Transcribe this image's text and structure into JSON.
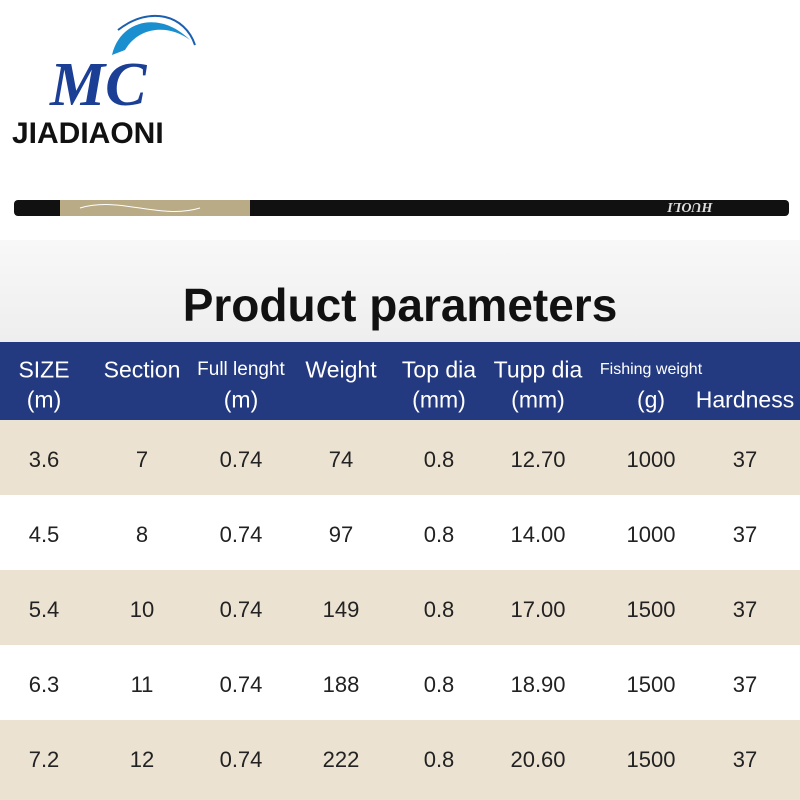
{
  "logo": {
    "mark": "MC",
    "brand": "JIADIAONI"
  },
  "rod": {
    "label": "HUOLI"
  },
  "title": "Product parameters",
  "table": {
    "headers": [
      [
        "SIZE",
        "(m)"
      ],
      [
        "Section"
      ],
      [
        "Full lenght",
        "(m)"
      ],
      [
        "Weight"
      ],
      [
        "Top dia",
        "(mm)"
      ],
      [
        "Tupp dia",
        "(mm)"
      ],
      [
        "Fishing weight",
        "(g)"
      ],
      [
        "Hardness"
      ]
    ],
    "rows": [
      [
        "3.6",
        "7",
        "0.74",
        "74",
        "0.8",
        "12.70",
        "1000",
        "37"
      ],
      [
        "4.5",
        "8",
        "0.74",
        "97",
        "0.8",
        "14.00",
        "1000",
        "37"
      ],
      [
        "5.4",
        "10",
        "0.74",
        "149",
        "0.8",
        "17.00",
        "1500",
        "37"
      ],
      [
        "6.3",
        "11",
        "0.74",
        "188",
        "0.8",
        "18.90",
        "1500",
        "37"
      ],
      [
        "7.2",
        "12",
        "0.74",
        "222",
        "0.8",
        "20.60",
        "1500",
        "37"
      ]
    ]
  }
}
